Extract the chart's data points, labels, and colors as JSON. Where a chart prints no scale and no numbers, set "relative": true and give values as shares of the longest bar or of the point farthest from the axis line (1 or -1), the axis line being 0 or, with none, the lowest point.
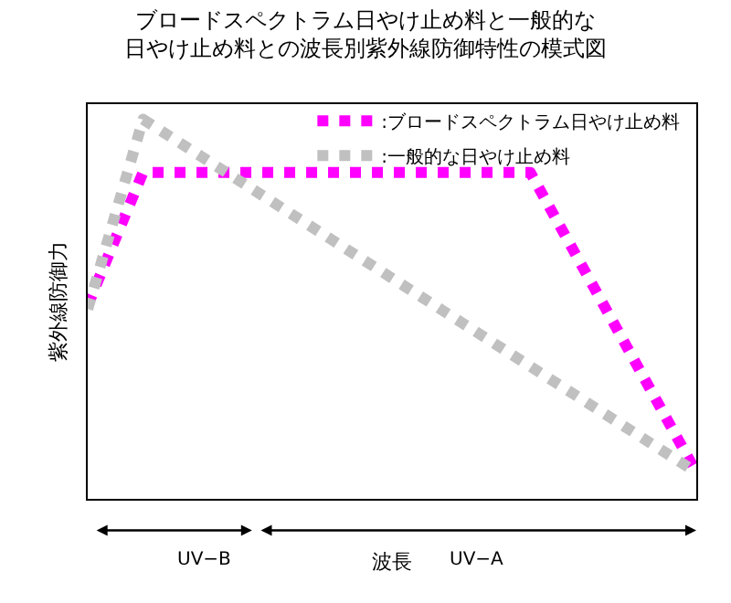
{
  "chart_data": {
    "type": "line",
    "relative": true,
    "title": "ブロードスペクトラム日やけ止め料と一般的な日やけ止め料との波長別紫外線防御特性の模式図",
    "xlabel": "波長",
    "ylabel": "紫外線防御力",
    "legend": "top right",
    "line_style": "dotted",
    "marker": "none",
    "tick_labels": false,
    "categories": [
      null,
      null,
      null,
      null,
      null,
      null,
      null,
      null,
      null,
      null,
      null,
      null
    ],
    "series": [
      {
        "name": ":ブロードスペクトラム日やけ止め料",
        "color": "#ff00ff",
        "values": [
          0.51,
          0.86,
          null,
          null,
          null,
          null,
          null,
          null,
          0.86,
          null,
          null,
          0.07
        ]
      },
      {
        "name": ":一般的な日やけ止め料",
        "color": "#c0c0c0",
        "values": [
          0.5,
          1,
          null,
          null,
          null,
          null,
          null,
          null,
          null,
          null,
          null,
          0.07
        ]
      }
    ],
    "annotations": [
      "UV−B",
      "UV−A"
    ]
  }
}
